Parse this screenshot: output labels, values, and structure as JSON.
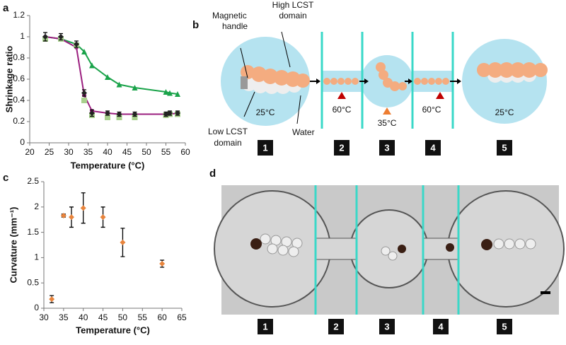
{
  "panel_labels": [
    "a",
    "b",
    "c",
    "d"
  ],
  "chart_data": [
    {
      "type": "line",
      "xlabel": "Temperature (°C)",
      "ylabel": "Shrinkage ratio",
      "xlim": [
        20,
        60
      ],
      "xticks": [
        20,
        25,
        30,
        35,
        40,
        45,
        50,
        55,
        60
      ],
      "ylim": [
        0,
        1.2
      ],
      "yticks": [
        0,
        0.2,
        0.4,
        0.6,
        0.8,
        1,
        1.2
      ],
      "series": [
        {
          "color": "#1aa34a",
          "marker": "triangle",
          "line": true,
          "x": [
            24,
            28,
            32,
            34,
            36,
            40,
            43,
            47,
            55,
            56,
            58
          ],
          "values": [
            1.0,
            0.98,
            0.93,
            0.86,
            0.73,
            0.62,
            0.55,
            0.52,
            0.48,
            0.47,
            0.46
          ]
        },
        {
          "color": "#9b1f7f",
          "marker": "circle",
          "line": true,
          "x": [
            24,
            28,
            32,
            34,
            36,
            40,
            43,
            47,
            55,
            56,
            58
          ],
          "values": [
            1.0,
            0.98,
            0.9,
            0.45,
            0.3,
            0.28,
            0.27,
            0.27,
            0.27,
            0.27,
            0.28
          ]
        },
        {
          "color": "#a8d08d",
          "marker": "square",
          "line": false,
          "x": [
            24,
            28,
            32,
            34,
            36,
            40,
            43,
            47,
            55,
            56,
            58
          ],
          "values": [
            0.98,
            0.98,
            0.92,
            0.4,
            0.26,
            0.24,
            0.24,
            0.24,
            0.26,
            0.27,
            0.27
          ]
        },
        {
          "color": "#222222",
          "marker": "diamond",
          "line": false,
          "x": [
            24,
            28,
            32,
            34,
            36,
            40,
            43,
            47,
            55,
            56,
            58
          ],
          "values": [
            1.0,
            1.0,
            0.93,
            0.47,
            0.28,
            0.28,
            0.27,
            0.27,
            0.27,
            0.28,
            0.28
          ],
          "errors": [
            0.04,
            0.03,
            0.03,
            0.03,
            0.03,
            0.02,
            0.02,
            0.02,
            0.02,
            0.02,
            0.02
          ]
        }
      ]
    },
    {
      "type": "scatter",
      "xlabel": "Temperature (°C)",
      "ylabel": "Curvature (mm⁻¹)",
      "xlim": [
        30,
        65
      ],
      "xticks": [
        30,
        35,
        40,
        45,
        50,
        55,
        60,
        65
      ],
      "ylim": [
        0,
        2.5
      ],
      "yticks": [
        0,
        0.5,
        1,
        1.5,
        2,
        2.5
      ],
      "series": [
        {
          "color": "#e8843c",
          "marker": "diamond",
          "line": false,
          "x": [
            32,
            35,
            37,
            40,
            45,
            50,
            60
          ],
          "values": [
            0.18,
            1.83,
            1.8,
            1.98,
            1.8,
            1.3,
            0.88
          ],
          "errors": [
            0.07,
            0.03,
            0.2,
            0.3,
            0.2,
            0.28,
            0.07
          ]
        }
      ]
    }
  ],
  "diagram": {
    "magnetic_handle": [
      "Magnetic",
      "handle"
    ],
    "high_lcst": [
      "High LCST",
      "domain"
    ],
    "low_lcst": [
      "Low LCST",
      "domain"
    ],
    "water": "Water",
    "temperatures": [
      "25°C",
      "60°C",
      "35°C",
      "60°C",
      "25°C"
    ],
    "steps": [
      "1",
      "2",
      "3",
      "4",
      "5"
    ]
  },
  "photo": {
    "steps": [
      "1",
      "2",
      "3",
      "4",
      "5"
    ]
  }
}
